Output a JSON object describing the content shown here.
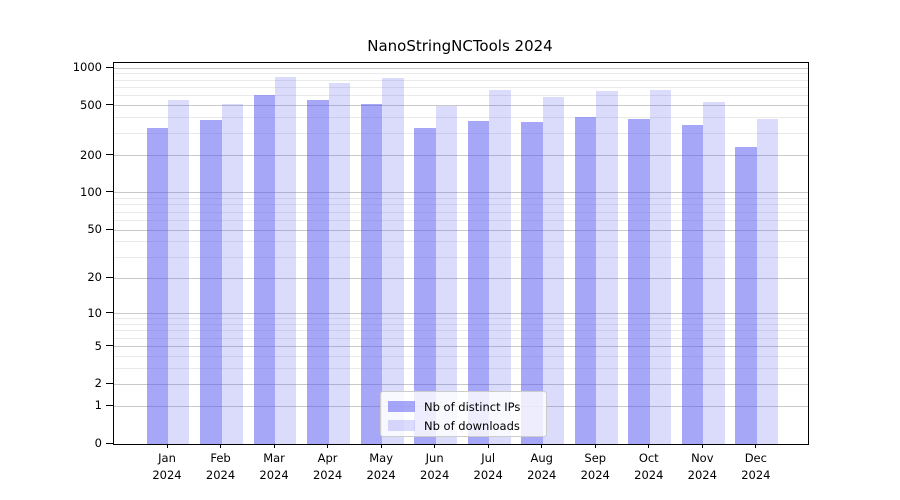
{
  "title": "NanoStringNCTools 2024",
  "legend": {
    "items": [
      {
        "label": "Nb of distinct IPs",
        "color_key": "bar_dark"
      },
      {
        "label": "Nb of downloads",
        "color_key": "bar_light"
      }
    ]
  },
  "colors": {
    "bar_dark": "rgba(87,87,241,0.52)",
    "bar_light": "rgba(87,87,241,0.21)",
    "grid_major": "#c9c9c9",
    "grid_minor": "#eaeaea",
    "spine": "#000000"
  },
  "axis": {
    "y_major_ticks": [
      1000,
      500,
      200,
      100,
      50,
      20,
      10,
      5,
      2,
      1,
      0
    ],
    "y_minor_ticks": [
      900,
      800,
      700,
      600,
      400,
      300,
      90,
      80,
      70,
      60,
      40,
      30,
      9,
      8,
      7,
      6,
      4,
      3
    ],
    "x_months": [
      "Jan",
      "Feb",
      "Mar",
      "Apr",
      "May",
      "Jun",
      "Jul",
      "Aug",
      "Sep",
      "Oct",
      "Nov",
      "Dec"
    ],
    "x_year": "2024"
  },
  "chart_data": {
    "type": "bar",
    "title": "NanoStringNCTools 2024",
    "categories": [
      "Jan 2024",
      "Feb 2024",
      "Mar 2024",
      "Apr 2024",
      "May 2024",
      "Jun 2024",
      "Jul 2024",
      "Aug 2024",
      "Sep 2024",
      "Oct 2024",
      "Nov 2024",
      "Dec 2024"
    ],
    "series": [
      {
        "name": "Nb of distinct IPs",
        "values": [
          335,
          385,
          610,
          555,
          515,
          330,
          375,
          370,
          410,
          390,
          350,
          235
        ]
      },
      {
        "name": "Nb of downloads",
        "values": [
          555,
          515,
          845,
          760,
          830,
          495,
          665,
          585,
          655,
          665,
          535,
          390
        ]
      }
    ],
    "yscale": "log1p",
    "ylim": [
      0,
      1100
    ],
    "xlabel": "",
    "ylabel": "",
    "grid": true,
    "legend_position": "lower center"
  }
}
